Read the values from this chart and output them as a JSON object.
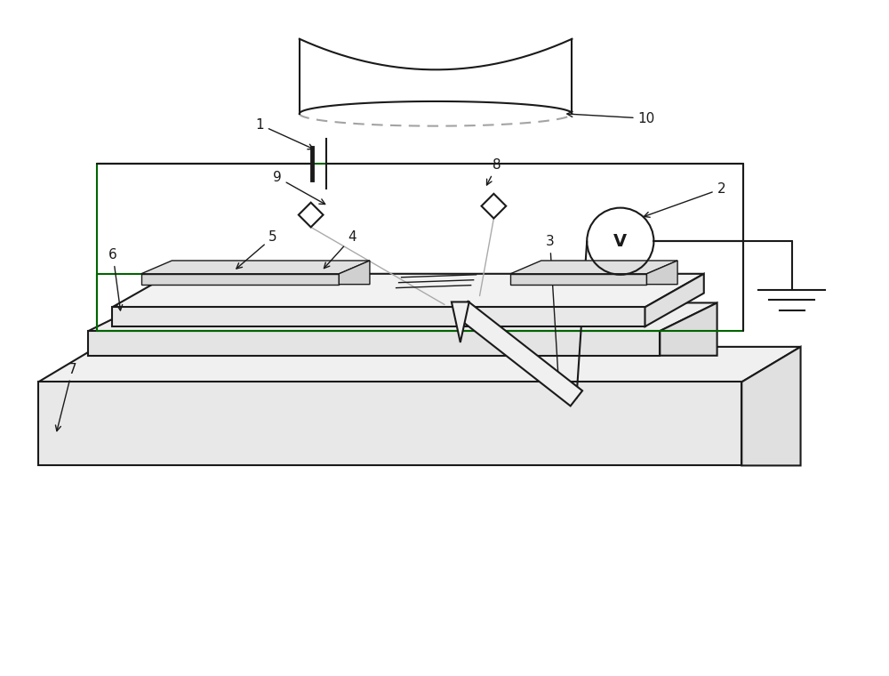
{
  "bg_color": "#ffffff",
  "line_color": "#1a1a1a",
  "green_color": "#006400",
  "gray_line": "#aaaaaa",
  "fig_w": 10.0,
  "fig_h": 7.6,
  "dpi": 100
}
